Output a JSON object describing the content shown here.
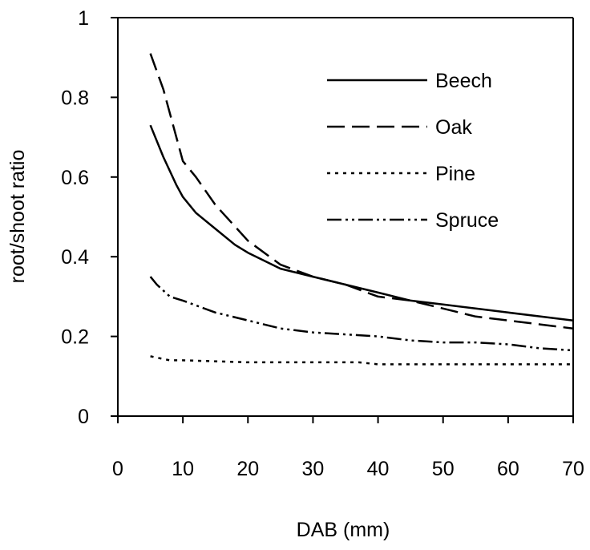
{
  "chart_data": {
    "type": "line",
    "title": "",
    "xlabel": "DAB (mm)",
    "ylabel": "root/shoot ratio",
    "xlim": [
      0,
      70
    ],
    "ylim": [
      0,
      1
    ],
    "xticks": [
      0,
      10,
      20,
      30,
      40,
      50,
      60,
      70
    ],
    "yticks": [
      0,
      0.2,
      0.4,
      0.6,
      0.8,
      1
    ],
    "xtick_labels": [
      "0",
      "10",
      "20",
      "30",
      "40",
      "50",
      "60",
      "70"
    ],
    "ytick_labels": [
      "0",
      "0.2",
      "0.4",
      "0.6",
      "0.8",
      "1"
    ],
    "grid": false,
    "legend_position": "top-right",
    "series": [
      {
        "name": "Beech",
        "line_style": "solid",
        "color": "#000000",
        "x": [
          5,
          7,
          9,
          10,
          12,
          15,
          18,
          20,
          25,
          30,
          35,
          40,
          45,
          50,
          55,
          60,
          65,
          70
        ],
        "y": [
          0.73,
          0.65,
          0.58,
          0.55,
          0.51,
          0.47,
          0.43,
          0.41,
          0.37,
          0.35,
          0.33,
          0.31,
          0.29,
          0.28,
          0.27,
          0.26,
          0.25,
          0.24
        ]
      },
      {
        "name": "Oak",
        "line_style": "dashed",
        "color": "#000000",
        "x": [
          5,
          7,
          8,
          10,
          12,
          15,
          20,
          25,
          30,
          35,
          40,
          45,
          50,
          55,
          60,
          65,
          70
        ],
        "y": [
          0.91,
          0.82,
          0.76,
          0.64,
          0.6,
          0.53,
          0.44,
          0.38,
          0.35,
          0.33,
          0.3,
          0.29,
          0.27,
          0.25,
          0.24,
          0.23,
          0.22
        ]
      },
      {
        "name": "Pine",
        "line_style": "dotted",
        "color": "#000000",
        "x": [
          5,
          8,
          10,
          20,
          30,
          37,
          40,
          50,
          60,
          70
        ],
        "y": [
          0.15,
          0.14,
          0.14,
          0.135,
          0.135,
          0.135,
          0.13,
          0.13,
          0.13,
          0.13
        ]
      },
      {
        "name": "Spruce",
        "line_style": "dash-dot-dot",
        "color": "#000000",
        "x": [
          5,
          6,
          8,
          10,
          15,
          20,
          25,
          30,
          35,
          40,
          45,
          50,
          55,
          60,
          65,
          70
        ],
        "y": [
          0.35,
          0.33,
          0.3,
          0.29,
          0.26,
          0.24,
          0.22,
          0.21,
          0.205,
          0.2,
          0.19,
          0.185,
          0.185,
          0.18,
          0.17,
          0.165
        ]
      }
    ]
  }
}
